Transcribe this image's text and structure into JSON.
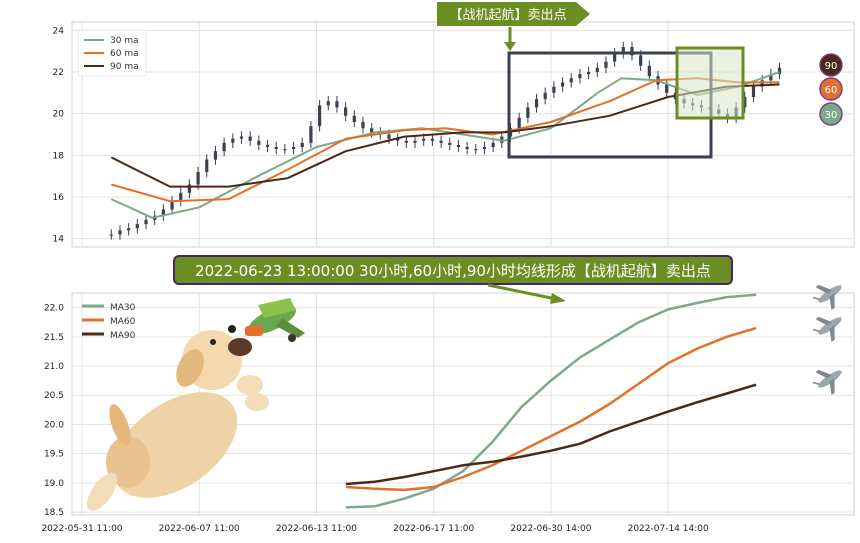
{
  "title_banner": "2022-06-23 13:00:00 30小时,60小时,90小时均线形成【战机起航】卖出点",
  "signal_label": "【战机起航】卖出点",
  "colors": {
    "ma30": "#7da98a",
    "ma60": "#e3702a",
    "ma90": "#4a2a17",
    "candle": "#3a3f52",
    "banner_fill": "#6b8e23",
    "banner_stroke": "#4a2566",
    "box_dark": "#3a3f52",
    "box_green": "#6b8e23",
    "box_green_fill": "#d8e6c6"
  },
  "top_chart": {
    "y_ticks": [
      "14",
      "16",
      "18",
      "20",
      "22",
      "24"
    ],
    "ylim": [
      13.6,
      24.4
    ],
    "legend": [
      "30 ma",
      "60 ma",
      "90 ma"
    ],
    "end_badges": [
      "90",
      "60",
      "30"
    ]
  },
  "bottom_chart": {
    "y_ticks": [
      "18.5",
      "19.0",
      "19.5",
      "20.0",
      "20.5",
      "21.0",
      "21.5",
      "22.0"
    ],
    "ylim": [
      18.45,
      22.25
    ],
    "legend": [
      "MA30",
      "MA60",
      "MA90"
    ]
  },
  "x_ticks": [
    "2022-05-31 11:00",
    "2022-06-07 11:00",
    "2022-06-13 11:00",
    "2022-06-17 11:00",
    "2022-06-30 14:00",
    "2022-07-14 14:00"
  ],
  "chart_data": [
    {
      "type": "line",
      "xlim": [
        0,
        130
      ],
      "ylim": [
        13.6,
        24.4
      ],
      "x_tick_index": [
        0,
        20,
        40,
        60,
        80,
        100
      ],
      "x_tick_labels": [
        "2022-05-31 11:00",
        "2022-06-07 11:00",
        "2022-06-13 11:00",
        "2022-06-17 11:00",
        "2022-06-30 14:00",
        "2022-07-14 14:00"
      ],
      "candles_approx": {
        "x_start": 5,
        "closes": [
          14.2,
          14.4,
          14.5,
          14.7,
          14.9,
          15.1,
          15.4,
          15.8,
          16.2,
          16.6,
          17.2,
          17.8,
          18.2,
          18.6,
          18.8,
          18.9,
          18.7,
          18.5,
          18.4,
          18.3,
          18.3,
          18.4,
          18.6,
          19.4,
          20.4,
          20.6,
          20.3,
          19.9,
          19.6,
          19.3,
          19.1,
          19.0,
          18.8,
          18.7,
          18.6,
          18.7,
          18.8,
          18.7,
          18.6,
          18.5,
          18.4,
          18.3,
          18.3,
          18.4,
          18.6,
          18.9,
          19.3,
          19.8,
          20.3,
          20.7,
          21.0,
          21.3,
          21.5,
          21.7,
          21.9,
          22.0,
          22.2,
          22.5,
          22.9,
          23.2,
          22.8,
          22.3,
          21.8,
          21.4,
          21.0,
          20.7,
          20.5,
          20.4,
          20.3,
          20.2,
          20.0,
          19.8,
          20.3,
          20.8,
          21.3,
          21.6,
          21.9,
          22.2
        ]
      },
      "series": [
        {
          "name": "30 ma",
          "x": [
            5,
            12,
            20,
            30,
            40,
            50,
            58,
            65,
            72,
            80,
            88,
            92,
            98,
            105,
            112,
            119
          ],
          "y": [
            15.9,
            15.0,
            15.5,
            17.0,
            18.4,
            19.1,
            19.3,
            19.0,
            18.7,
            19.3,
            21.0,
            21.7,
            21.6,
            20.9,
            21.3,
            22.0
          ]
        },
        {
          "name": "60 ma",
          "x": [
            5,
            15,
            25,
            35,
            45,
            55,
            62,
            70,
            80,
            90,
            98,
            105,
            112,
            119
          ],
          "y": [
            16.6,
            15.8,
            15.9,
            17.3,
            18.8,
            19.2,
            19.3,
            19.0,
            19.6,
            20.6,
            21.6,
            21.7,
            21.5,
            21.5
          ]
        },
        {
          "name": "90 ma",
          "x": [
            5,
            15,
            25,
            35,
            45,
            55,
            65,
            72,
            80,
            90,
            100,
            110,
            119
          ],
          "y": [
            17.9,
            16.5,
            16.5,
            16.9,
            18.2,
            18.9,
            19.1,
            19.1,
            19.4,
            19.9,
            20.8,
            21.3,
            21.4
          ]
        }
      ]
    },
    {
      "type": "line",
      "xlim": [
        0,
        130
      ],
      "ylim": [
        18.45,
        22.25
      ],
      "x_tick_index": [
        0,
        20,
        40,
        60,
        80,
        100
      ],
      "x_tick_labels": [
        "2022-05-31 11:00",
        "2022-06-07 11:00",
        "2022-06-13 11:00",
        "2022-06-17 11:00",
        "2022-06-30 14:00",
        "2022-07-14 14:00"
      ],
      "series": [
        {
          "name": "MA30",
          "x": [
            45,
            50,
            55,
            60,
            65,
            70,
            75,
            80,
            85,
            90,
            95,
            100,
            105,
            110,
            115
          ],
          "y": [
            18.58,
            18.6,
            18.73,
            18.9,
            19.2,
            19.7,
            20.3,
            20.75,
            21.15,
            21.45,
            21.75,
            21.97,
            22.08,
            22.18,
            22.22
          ]
        },
        {
          "name": "MA60",
          "x": [
            45,
            50,
            55,
            60,
            65,
            70,
            75,
            80,
            85,
            90,
            95,
            100,
            105,
            110,
            115
          ],
          "y": [
            18.93,
            18.9,
            18.88,
            18.93,
            19.1,
            19.3,
            19.55,
            19.8,
            20.05,
            20.35,
            20.7,
            21.05,
            21.3,
            21.5,
            21.65
          ]
        },
        {
          "name": "MA90",
          "x": [
            45,
            50,
            55,
            60,
            65,
            70,
            75,
            80,
            85,
            90,
            95,
            100,
            105,
            110,
            115
          ],
          "y": [
            18.98,
            19.02,
            19.1,
            19.2,
            19.3,
            19.36,
            19.45,
            19.55,
            19.67,
            19.88,
            20.05,
            20.22,
            20.38,
            20.53,
            20.68
          ]
        }
      ]
    }
  ]
}
